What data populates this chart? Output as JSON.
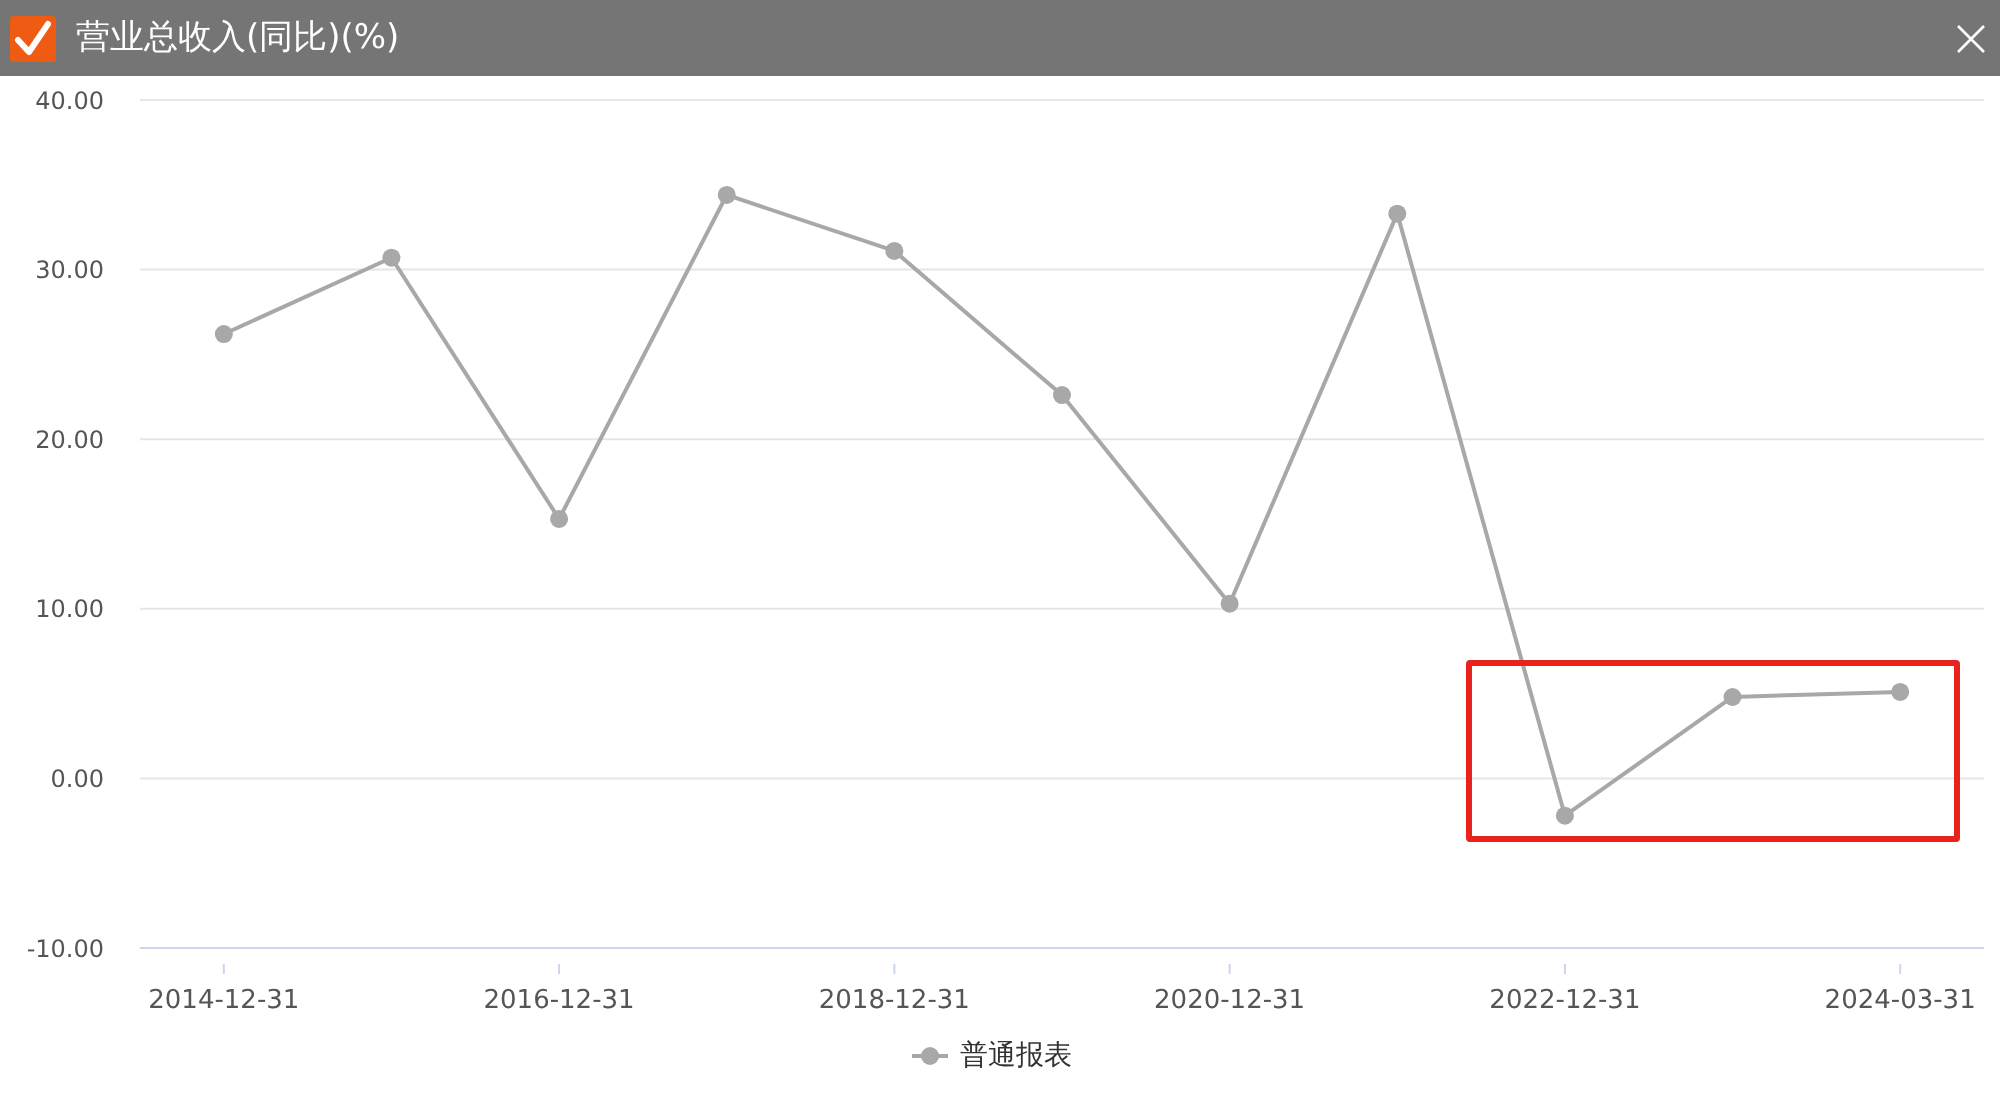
{
  "chart_data": {
    "type": "line",
    "title": "营业总收入(同比)(%)",
    "categories": [
      "2014-12-31",
      null,
      "2016-12-31",
      null,
      "2018-12-31",
      null,
      "2020-12-31",
      null,
      "2022-12-31",
      null,
      "2024-03-31"
    ],
    "series": [
      {
        "name": "普通报表",
        "color": "#a8a8a8",
        "values": [
          26.2,
          30.7,
          15.3,
          34.4,
          31.1,
          22.6,
          10.3,
          33.3,
          -2.2,
          4.8,
          5.1
        ]
      }
    ],
    "ylim": [
      -10,
      40
    ],
    "yticks": [
      {
        "value": -10,
        "label": "-10.00"
      },
      {
        "value": 0,
        "label": "0.00"
      },
      {
        "value": 10,
        "label": "10.00"
      },
      {
        "value": 20,
        "label": "20.00"
      },
      {
        "value": 30,
        "label": "30.00"
      },
      {
        "value": 40,
        "label": "40.00"
      }
    ],
    "grid": "y",
    "legend": "bottom",
    "marker": "circle",
    "line_style": "solid"
  }
}
